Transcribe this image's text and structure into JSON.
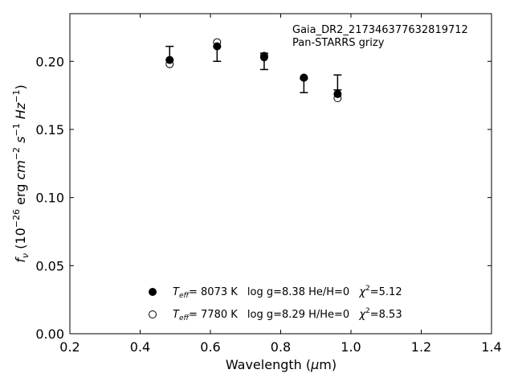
{
  "chart_data": {
    "type": "scatter",
    "annotation": {
      "line1": "Gaia_DR2_217346377632819712",
      "line2": "Pan-STARRS grizy"
    },
    "xlabel": "Wavelength (μm)",
    "ylabel": "f_ν (10^-26 erg cm^-2 s^-1 Hz^-1)",
    "xlim": [
      0.2,
      1.4
    ],
    "ylim": [
      0.0,
      0.235
    ],
    "xticks": [
      0.2,
      0.4,
      0.6,
      0.8,
      1.0,
      1.2,
      1.4
    ],
    "xtick_labels": [
      "0.2",
      "0.4",
      "0.6",
      "0.8",
      "1.0",
      "1.2",
      "1.4"
    ],
    "yticks": [
      0.0,
      0.05,
      0.1,
      0.15,
      0.2
    ],
    "ytick_labels": [
      "0.00",
      "0.05",
      "0.10",
      "0.15",
      "0.20"
    ],
    "observed": {
      "x": [
        0.484,
        0.619,
        0.753,
        0.866,
        0.962
      ],
      "y": [
        0.201,
        0.206,
        0.2,
        0.187,
        0.185
      ],
      "yerr_low": [
        0.0,
        0.006,
        0.006,
        0.01,
        0.006
      ],
      "yerr_high": [
        0.01,
        0.005,
        0.006,
        0.0,
        0.005
      ]
    },
    "series": [
      {
        "marker": "filled-circle",
        "x": [
          0.484,
          0.619,
          0.753,
          0.866,
          0.962
        ],
        "y": [
          0.201,
          0.211,
          0.203,
          0.188,
          0.176
        ]
      },
      {
        "marker": "open-circle",
        "x": [
          0.484,
          0.619,
          0.753,
          0.866,
          0.962
        ],
        "y": [
          0.198,
          0.214,
          0.204,
          0.188,
          0.173
        ]
      }
    ],
    "legend": {
      "placement": "lower-center",
      "entries": [
        {
          "marker": "filled-circle",
          "teff_label": "T",
          "teff_sub": "eff",
          "teff_value": "=  8073 K",
          "params": "log g=8.38  He/H=0",
          "chi_label": "χ",
          "chi_sup": "2",
          "chi_value": "=5.12"
        },
        {
          "marker": "open-circle",
          "teff_label": "T",
          "teff_sub": "eff",
          "teff_value": "=  7780 K",
          "params": "log g=8.29  H/He=0",
          "chi_label": "χ",
          "chi_sup": "2",
          "chi_value": "=8.53"
        }
      ]
    }
  }
}
